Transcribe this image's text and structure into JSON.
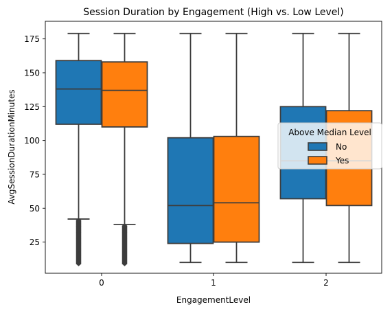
{
  "chart_data": {
    "type": "box",
    "title": "Session Duration by Engagement (High vs. Low Level)",
    "xlabel": "EngagementLevel",
    "ylabel": "AvgSessionDurationMinutes",
    "categories": [
      "0",
      "1",
      "2"
    ],
    "yticks": [
      25,
      50,
      75,
      100,
      125,
      150,
      175
    ],
    "ylim": [
      2,
      188
    ],
    "grid": false,
    "legend": {
      "title": "Above Median Level",
      "placement": "center-right"
    },
    "series": [
      {
        "name": "No",
        "color": "#1f77b4",
        "boxes": [
          {
            "whisker_low": 42,
            "q1": 112,
            "median": 138,
            "q3": 159,
            "whisker_high": 179,
            "outliers_from": 9,
            "outliers_to": 41
          },
          {
            "whisker_low": 10,
            "q1": 24,
            "median": 52,
            "q3": 102,
            "whisker_high": 179
          },
          {
            "whisker_low": 10,
            "q1": 57,
            "median": 85,
            "q3": 125,
            "whisker_high": 179
          }
        ]
      },
      {
        "name": "Yes",
        "color": "#ff7f0e",
        "boxes": [
          {
            "whisker_low": 38,
            "q1": 110,
            "median": 137,
            "q3": 158,
            "whisker_high": 179,
            "outliers_from": 9,
            "outliers_to": 37
          },
          {
            "whisker_low": 10,
            "q1": 25,
            "median": 54,
            "q3": 103,
            "whisker_high": 179
          },
          {
            "whisker_low": 10,
            "q1": 52,
            "median": 85,
            "q3": 122,
            "whisker_high": 179
          }
        ]
      }
    ]
  }
}
